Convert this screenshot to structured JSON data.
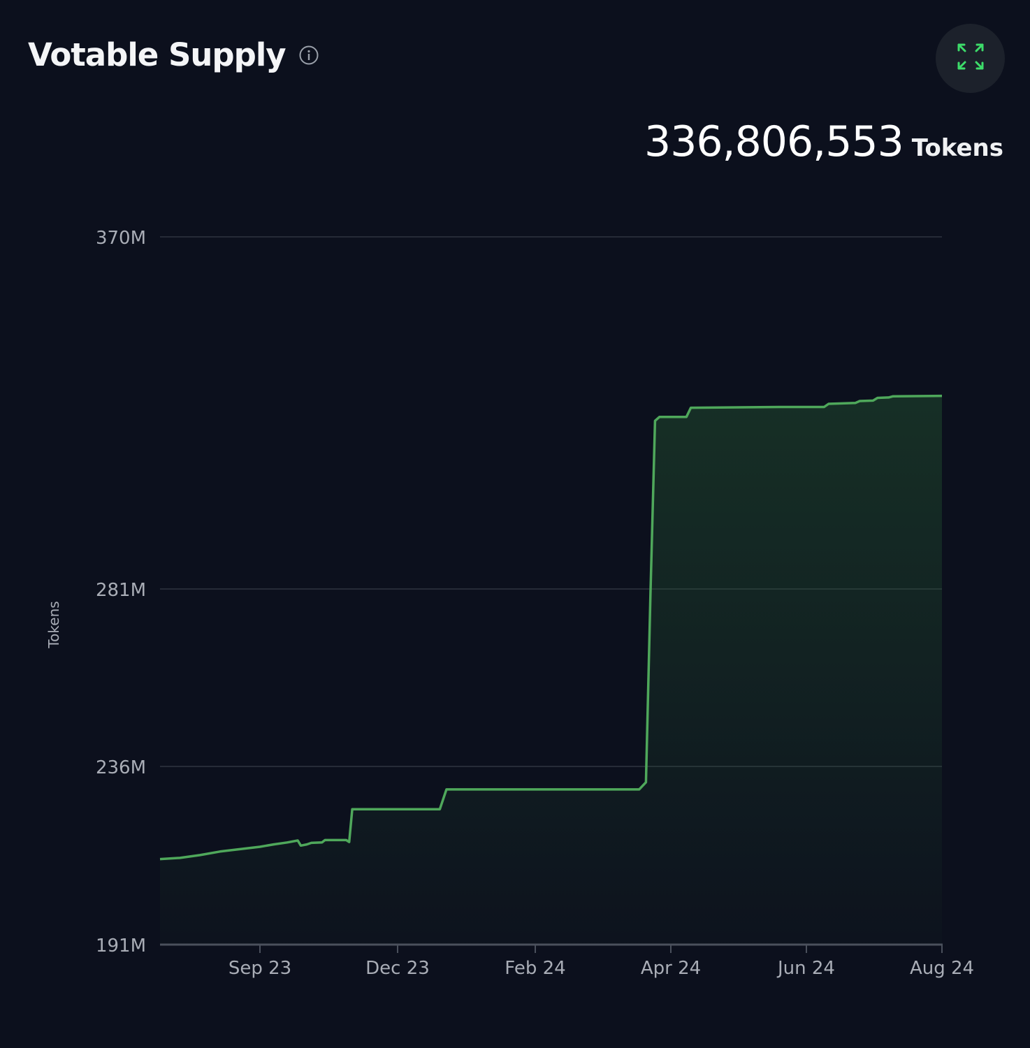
{
  "header": {
    "title": "Votable Supply",
    "info_icon": "info-circle-icon",
    "expand_icon": "expand-arrows-icon"
  },
  "summary": {
    "value": "336,806,553",
    "unit": "Tokens"
  },
  "colors": {
    "background": "#0c101d",
    "line": "#4fa85b",
    "accent_icon": "#3ddc6a",
    "grid": "#262b37",
    "button_bg": "#1c212b"
  },
  "chart_data": {
    "type": "area",
    "title": "Votable Supply",
    "ylabel": "Tokens",
    "xlabel": "",
    "y_scale": "linear",
    "ylim": [
      191000000,
      370000000
    ],
    "yticks": [
      {
        "value": 191000000,
        "label": "191M"
      },
      {
        "value": 236000000,
        "label": "236M"
      },
      {
        "value": 281000000,
        "label": "281M"
      },
      {
        "value": 370000000,
        "label": "370M"
      }
    ],
    "xlim": [
      "2023-07-18",
      "2024-08-01"
    ],
    "xticks": [
      {
        "date": "2023-09-01",
        "label": "Sep 23"
      },
      {
        "date": "2023-12-01",
        "label": "Dec 23"
      },
      {
        "date": "2024-02-01",
        "label": "Feb 24"
      },
      {
        "date": "2024-04-01",
        "label": "Apr 24"
      },
      {
        "date": "2024-06-01",
        "label": "Jun 24"
      },
      {
        "date": "2024-08-01",
        "label": "Aug 24"
      }
    ],
    "grid": true,
    "legend": "none",
    "series": [
      {
        "points": [
          {
            "x": "2023-07-18",
            "y": 212600000
          },
          {
            "x": "2023-07-27",
            "y": 212900000
          },
          {
            "x": "2023-08-05",
            "y": 213600000
          },
          {
            "x": "2023-08-14",
            "y": 214500000
          },
          {
            "x": "2023-08-23",
            "y": 215100000
          },
          {
            "x": "2023-09-01",
            "y": 215700000
          },
          {
            "x": "2023-09-10",
            "y": 216300000
          },
          {
            "x": "2023-09-19",
            "y": 216800000
          },
          {
            "x": "2023-09-26",
            "y": 217300000
          },
          {
            "x": "2023-09-28",
            "y": 216000000
          },
          {
            "x": "2023-10-02",
            "y": 216300000
          },
          {
            "x": "2023-10-05",
            "y": 216700000
          },
          {
            "x": "2023-10-12",
            "y": 216800000
          },
          {
            "x": "2023-10-14",
            "y": 217400000
          },
          {
            "x": "2023-10-28",
            "y": 217400000
          },
          {
            "x": "2023-10-30",
            "y": 216900000
          },
          {
            "x": "2023-11-01",
            "y": 225200000
          },
          {
            "x": "2023-12-20",
            "y": 225200000
          },
          {
            "x": "2023-12-23",
            "y": 230200000
          },
          {
            "x": "2024-03-18",
            "y": 230200000
          },
          {
            "x": "2024-03-21",
            "y": 232000000
          },
          {
            "x": "2024-03-23",
            "y": 280000000
          },
          {
            "x": "2024-03-25",
            "y": 323500000
          },
          {
            "x": "2024-03-27",
            "y": 324500000
          },
          {
            "x": "2024-04-08",
            "y": 324500000
          },
          {
            "x": "2024-04-10",
            "y": 326800000
          },
          {
            "x": "2024-05-20",
            "y": 327000000
          },
          {
            "x": "2024-06-09",
            "y": 327000000
          },
          {
            "x": "2024-06-11",
            "y": 327800000
          },
          {
            "x": "2024-06-23",
            "y": 328000000
          },
          {
            "x": "2024-06-25",
            "y": 328500000
          },
          {
            "x": "2024-07-01",
            "y": 328600000
          },
          {
            "x": "2024-07-03",
            "y": 329300000
          },
          {
            "x": "2024-07-08",
            "y": 329400000
          },
          {
            "x": "2024-07-10",
            "y": 329700000
          },
          {
            "x": "2024-08-01",
            "y": 329800000
          }
        ]
      }
    ]
  }
}
